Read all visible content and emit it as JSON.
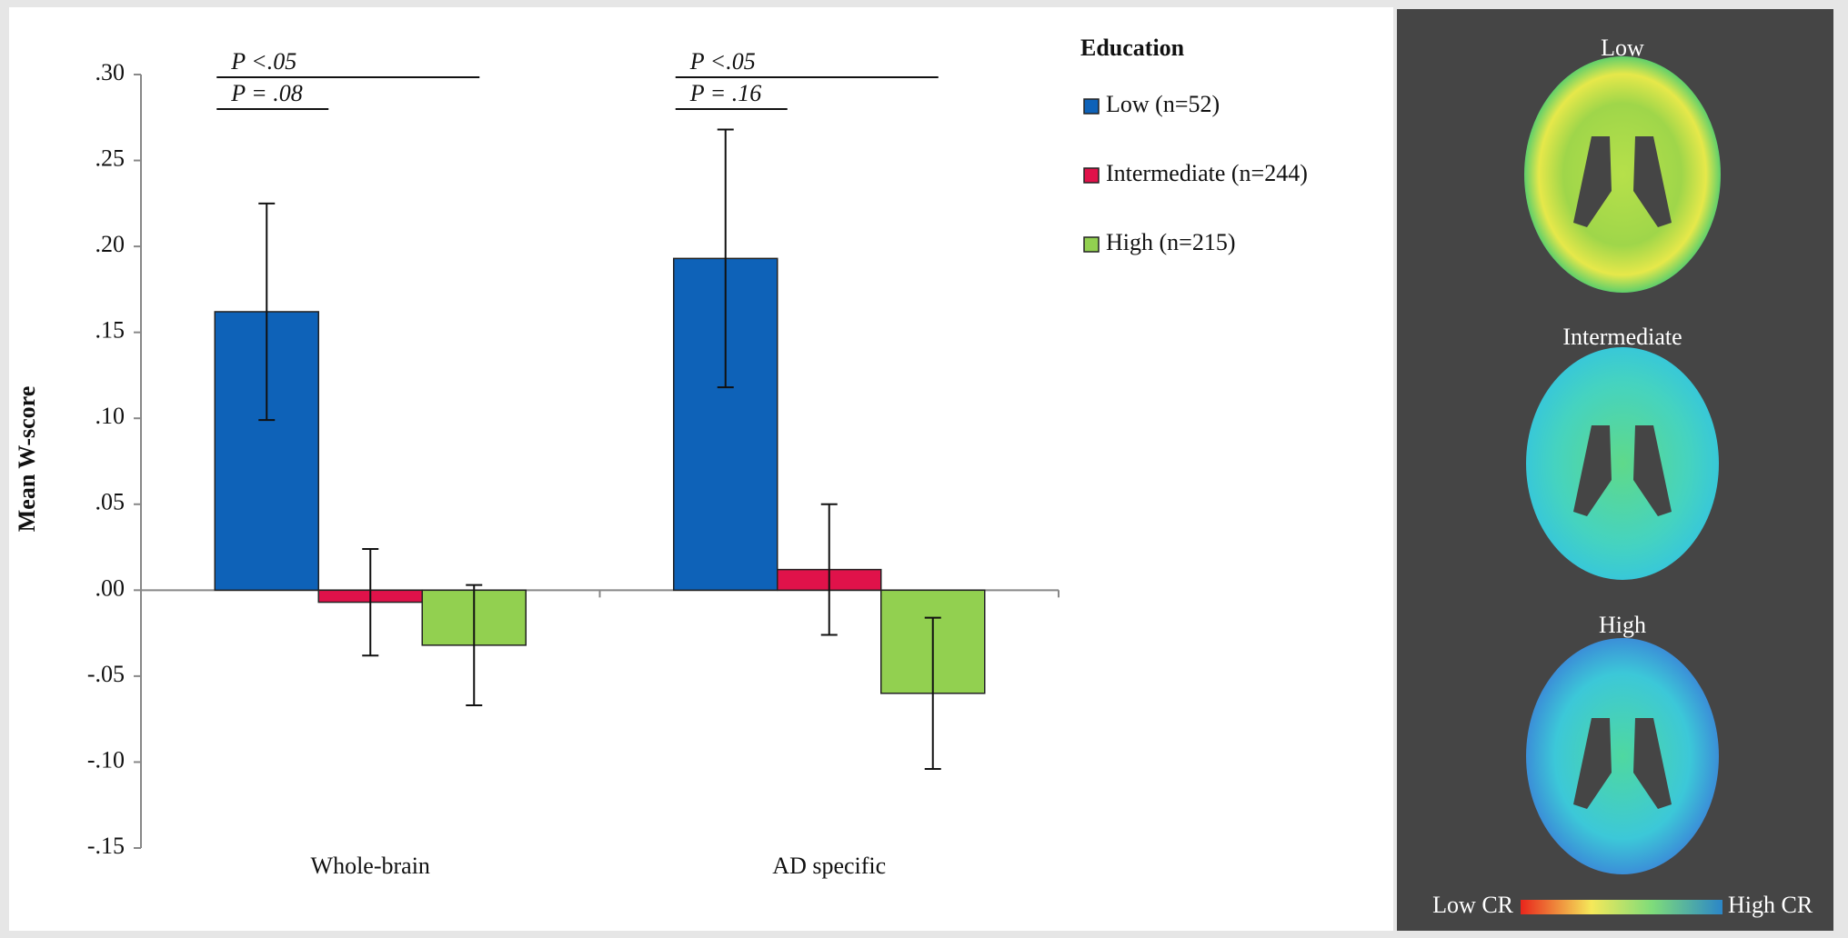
{
  "chart_data": {
    "type": "bar",
    "y_axis_label": "Mean W-score",
    "legend_title": "Education",
    "categories": [
      "Whole-brain",
      "AD specific"
    ],
    "series": [
      {
        "name": "Low (n=52)",
        "color": "#0e62b8",
        "values": [
          0.162,
          0.193
        ],
        "errors": [
          0.063,
          0.075
        ]
      },
      {
        "name": "Intermediate (n=244)",
        "color": "#e0124a",
        "values": [
          -0.007,
          0.012
        ],
        "errors": [
          0.031,
          0.038
        ]
      },
      {
        "name": "High (n=215)",
        "color": "#92d050",
        "values": [
          -0.032,
          -0.06
        ],
        "errors": [
          0.035,
          0.044
        ]
      }
    ],
    "annotations": [
      [
        "P <.05",
        "P = .08"
      ],
      [
        "P <.05",
        "P = .16"
      ]
    ],
    "ylim": [
      -0.15,
      0.3
    ],
    "yticks": [
      {
        "value": 0.3,
        "label": ".30"
      },
      {
        "value": 0.25,
        "label": ".25"
      },
      {
        "value": 0.2,
        "label": ".20"
      },
      {
        "value": 0.15,
        "label": ".15"
      },
      {
        "value": 0.1,
        "label": ".10"
      },
      {
        "value": 0.05,
        "label": ".05"
      },
      {
        "value": 0,
        "label": ".00"
      },
      {
        "value": -0.05,
        "label": "-.05"
      },
      {
        "value": -0.1,
        "label": "-.10"
      },
      {
        "value": -0.15,
        "label": "-.15"
      }
    ]
  },
  "brain_panel": {
    "labels": [
      "Low",
      "Intermediate",
      "High"
    ],
    "colorbar_low": "Low CR",
    "colorbar_high": "High CR"
  }
}
